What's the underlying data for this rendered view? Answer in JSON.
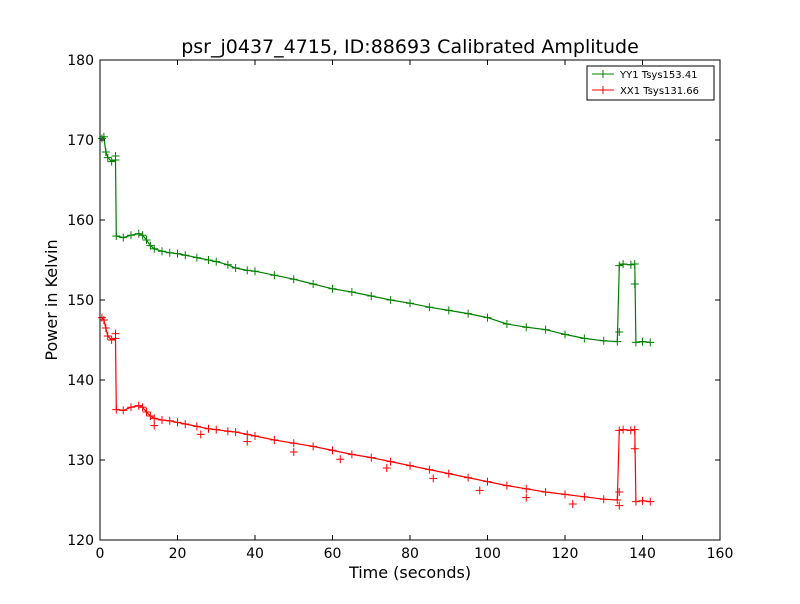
{
  "chart_data": {
    "type": "line",
    "title": "psr_j0437_4715, ID:88693 Calibrated Amplitude",
    "xlabel": "Time (seconds)",
    "ylabel": "Power in Kelvin",
    "xlim": [
      0,
      160
    ],
    "ylim": [
      120,
      180
    ],
    "xticks": [
      "0",
      "20",
      "40",
      "60",
      "80",
      "100",
      "120",
      "140",
      "160"
    ],
    "yticks": [
      "120",
      "130",
      "140",
      "150",
      "160",
      "170",
      "180"
    ],
    "grid": false,
    "legend_position": "top-right",
    "series": [
      {
        "name": "YY1 Tsys153.41",
        "color": "#008000",
        "points": [
          [
            0.5,
            170.2
          ],
          [
            1,
            170.4
          ],
          [
            1.5,
            168.5
          ],
          [
            2,
            167.8
          ],
          [
            3,
            167.3
          ],
          [
            4,
            167.5
          ],
          [
            4.2,
            158.0
          ],
          [
            6,
            157.8
          ],
          [
            8,
            158.1
          ],
          [
            10,
            158.3
          ],
          [
            11,
            158.1
          ],
          [
            12,
            157.5
          ],
          [
            13,
            156.8
          ],
          [
            14,
            156.4
          ],
          [
            16,
            156.1
          ],
          [
            18,
            155.9
          ],
          [
            20,
            155.8
          ],
          [
            22,
            155.6
          ],
          [
            25,
            155.3
          ],
          [
            28,
            155.0
          ],
          [
            30,
            154.8
          ],
          [
            33,
            154.4
          ],
          [
            35,
            154.0
          ],
          [
            38,
            153.7
          ],
          [
            40,
            153.6
          ],
          [
            45,
            153.1
          ],
          [
            50,
            152.6
          ],
          [
            55,
            152.0
          ],
          [
            60,
            151.4
          ],
          [
            65,
            151.0
          ],
          [
            70,
            150.5
          ],
          [
            75,
            150.0
          ],
          [
            80,
            149.6
          ],
          [
            85,
            149.1
          ],
          [
            90,
            148.7
          ],
          [
            95,
            148.3
          ],
          [
            100,
            147.8
          ],
          [
            105,
            147.0
          ],
          [
            110,
            146.6
          ],
          [
            115,
            146.3
          ],
          [
            120,
            145.7
          ],
          [
            125,
            145.2
          ],
          [
            130,
            144.9
          ],
          [
            133.5,
            144.8
          ],
          [
            134,
            154.3
          ],
          [
            135,
            154.5
          ],
          [
            137,
            154.4
          ],
          [
            138,
            154.5
          ],
          [
            138.3,
            144.7
          ],
          [
            140,
            144.8
          ],
          [
            142,
            144.7
          ]
        ],
        "outliers": [
          [
            4,
            168.0
          ],
          [
            134,
            146.0
          ],
          [
            138,
            152.0
          ]
        ]
      },
      {
        "name": "XX1 Tsys131.66",
        "color": "#ff0000",
        "points": [
          [
            0.5,
            147.8
          ],
          [
            1,
            147.5
          ],
          [
            1.5,
            146.5
          ],
          [
            2,
            145.5
          ],
          [
            3,
            145.0
          ],
          [
            4,
            145.2
          ],
          [
            4.2,
            136.3
          ],
          [
            6,
            136.2
          ],
          [
            8,
            136.6
          ],
          [
            10,
            136.8
          ],
          [
            11,
            136.6
          ],
          [
            12,
            136.0
          ],
          [
            13,
            135.5
          ],
          [
            14,
            135.2
          ],
          [
            16,
            135.0
          ],
          [
            18,
            134.9
          ],
          [
            20,
            134.7
          ],
          [
            22,
            134.5
          ],
          [
            25,
            134.2
          ],
          [
            28,
            133.9
          ],
          [
            30,
            133.8
          ],
          [
            33,
            133.6
          ],
          [
            35,
            133.5
          ],
          [
            38,
            133.2
          ],
          [
            40,
            133.0
          ],
          [
            45,
            132.5
          ],
          [
            50,
            132.1
          ],
          [
            55,
            131.7
          ],
          [
            60,
            131.2
          ],
          [
            65,
            130.7
          ],
          [
            70,
            130.3
          ],
          [
            75,
            129.8
          ],
          [
            80,
            129.3
          ],
          [
            85,
            128.8
          ],
          [
            90,
            128.3
          ],
          [
            95,
            127.8
          ],
          [
            100,
            127.3
          ],
          [
            105,
            126.8
          ],
          [
            110,
            126.4
          ],
          [
            115,
            126.0
          ],
          [
            120,
            125.7
          ],
          [
            125,
            125.4
          ],
          [
            130,
            125.1
          ],
          [
            133.5,
            125.0
          ],
          [
            134,
            133.7
          ],
          [
            135,
            133.8
          ],
          [
            137,
            133.7
          ],
          [
            138,
            133.8
          ],
          [
            138.3,
            124.8
          ],
          [
            140,
            124.9
          ],
          [
            142,
            124.8
          ]
        ],
        "outliers": [
          [
            4,
            145.8
          ],
          [
            14,
            134.3
          ],
          [
            26,
            133.2
          ],
          [
            38,
            132.3
          ],
          [
            50,
            131.0
          ],
          [
            62,
            130.1
          ],
          [
            74,
            129.0
          ],
          [
            86,
            127.7
          ],
          [
            98,
            126.2
          ],
          [
            110,
            125.3
          ],
          [
            122,
            124.5
          ],
          [
            134,
            124.3
          ],
          [
            134,
            126.0
          ],
          [
            138,
            131.4
          ]
        ]
      }
    ]
  }
}
